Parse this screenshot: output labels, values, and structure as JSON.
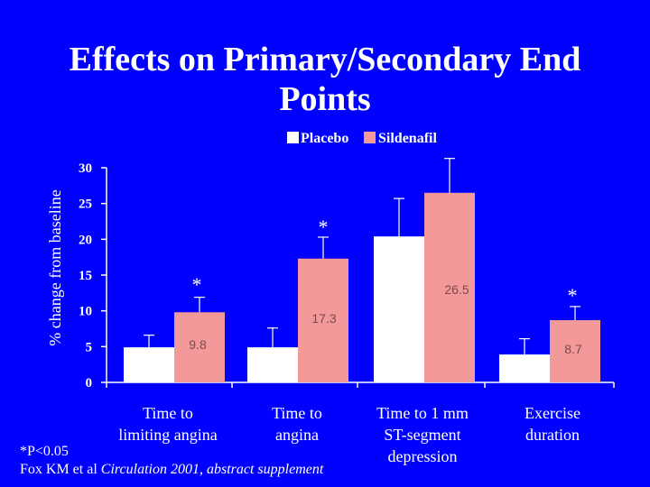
{
  "slide": {
    "title_line1": "Effects on Primary/Secondary End",
    "title_line2": "Points",
    "footnote_line1": "*P<0.05",
    "footnote_line2_prefix": "Fox KM et al ",
    "footnote_line2_journal": "Circulation 2001, abstract supplement"
  },
  "colors": {
    "background": "#0000ff",
    "placebo": "#ffffff",
    "sildenafil": "#f4999a",
    "axis": "#ffffff"
  },
  "chart_data": {
    "type": "bar",
    "title": "Effects on Primary/Secondary End Points",
    "ylabel": "% change from baseline",
    "xlabel": "",
    "ylim": [
      0,
      30
    ],
    "yticks": [
      0,
      5,
      10,
      15,
      20,
      25,
      30
    ],
    "grid": false,
    "legend_position": "top",
    "categories": [
      [
        "Time to",
        "limiting angina"
      ],
      [
        "Time to",
        "angina"
      ],
      [
        "Time to 1 mm",
        "ST-segment",
        "depression"
      ],
      [
        "Exercise",
        "duration"
      ]
    ],
    "series": [
      {
        "name": "Placebo",
        "color": "#ffffff",
        "values": [
          4.9,
          4.9,
          20.4,
          3.9
        ],
        "error_upper": [
          6.6,
          7.6,
          25.7,
          6.1
        ]
      },
      {
        "name": "Sildenafil",
        "color": "#f4999a",
        "values": [
          9.8,
          17.3,
          26.5,
          8.7
        ],
        "error_upper": [
          11.9,
          20.3,
          31.3,
          10.6
        ],
        "data_labels": [
          "9.8",
          "17.3",
          "26.5",
          "8.7"
        ],
        "significance": [
          "*",
          "*",
          "",
          "*"
        ]
      }
    ]
  }
}
